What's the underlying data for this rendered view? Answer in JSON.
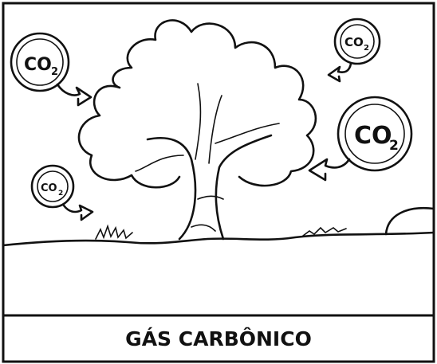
{
  "caption": "GÁS CARBÔNICO",
  "bubbles": [
    {
      "label": "CO",
      "subscript": "2"
    },
    {
      "label": "CO",
      "subscript": "2"
    },
    {
      "label": "CO",
      "subscript": "2"
    },
    {
      "label": "CO",
      "subscript": "2"
    }
  ]
}
